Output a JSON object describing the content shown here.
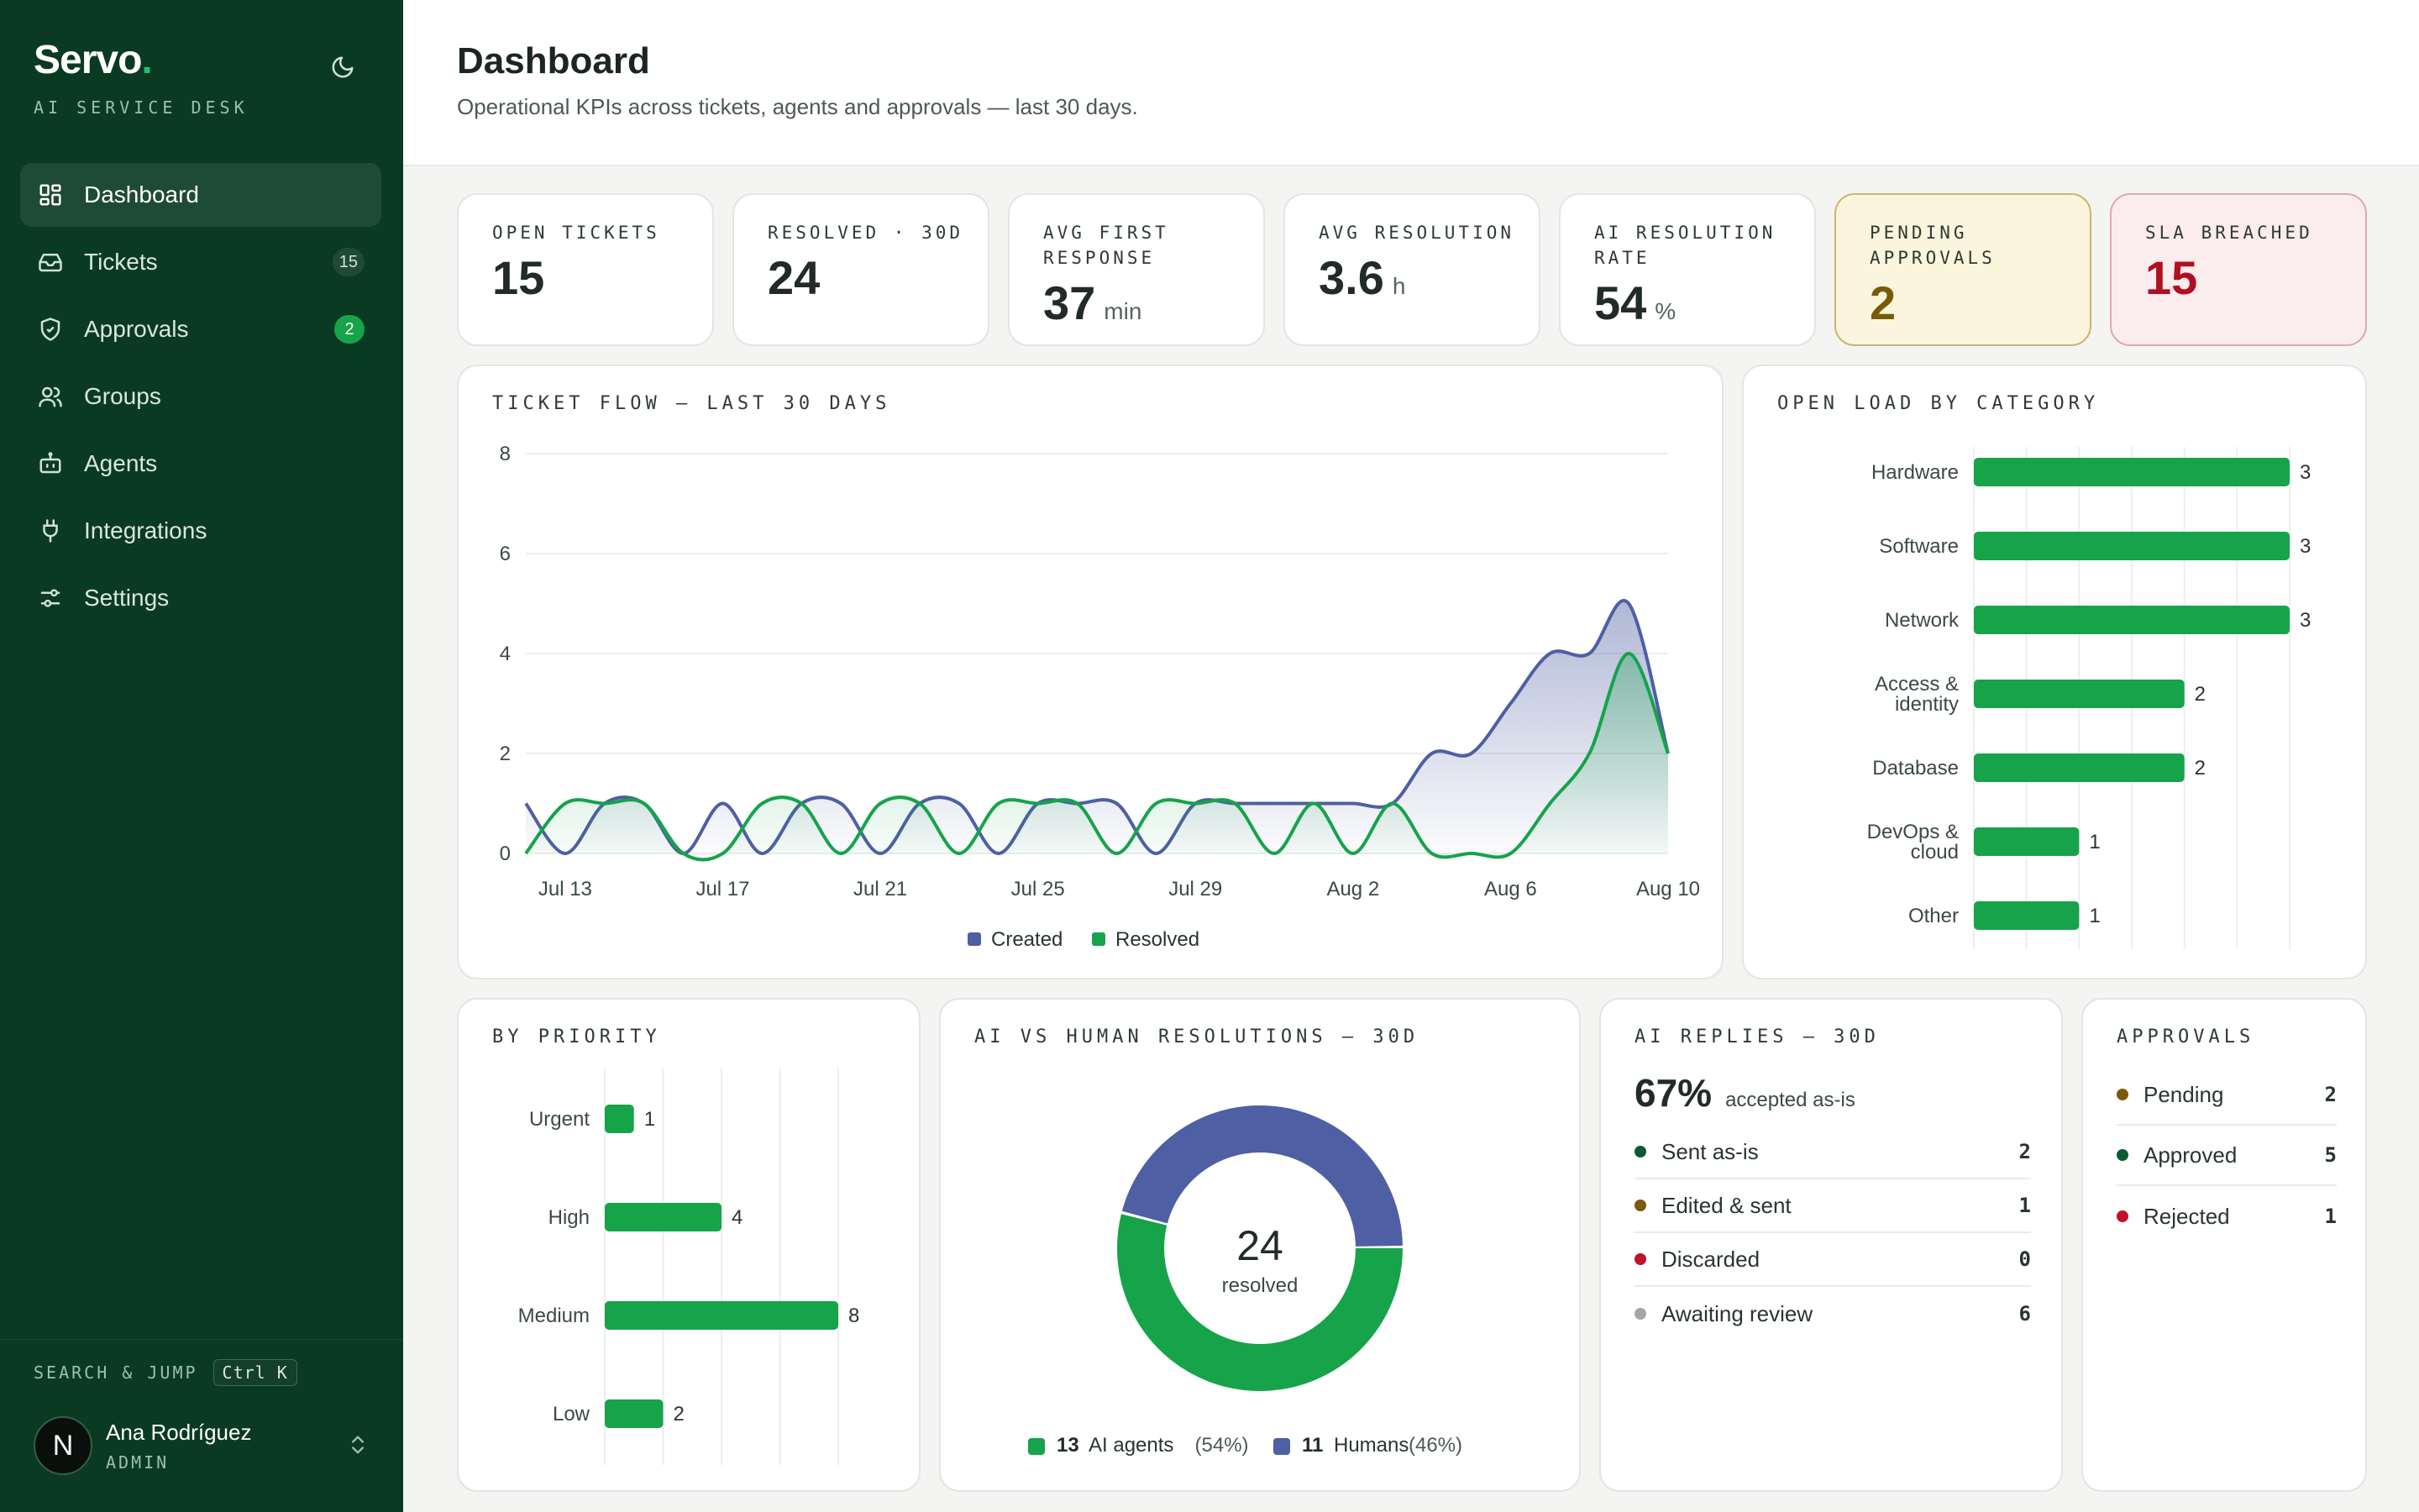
{
  "sidebar": {
    "brand": "Servo",
    "brand_dot": ".",
    "subtitle": "AI SERVICE DESK",
    "items": [
      {
        "label": "Dashboard",
        "icon": "dashboard-icon",
        "active": true
      },
      {
        "label": "Tickets",
        "icon": "inbox-icon",
        "badge": "15"
      },
      {
        "label": "Approvals",
        "icon": "shield-check-icon",
        "badge": "2"
      },
      {
        "label": "Groups",
        "icon": "users-icon"
      },
      {
        "label": "Agents",
        "icon": "bot-icon"
      },
      {
        "label": "Integrations",
        "icon": "plug-icon"
      },
      {
        "label": "Settings",
        "icon": "sliders-icon"
      }
    ],
    "search_label": "SEARCH & JUMP",
    "search_shortcut": "Ctrl K",
    "user": {
      "initial": "N",
      "name": "Ana Rodríguez",
      "role": "ADMIN"
    }
  },
  "header": {
    "title": "Dashboard",
    "subtitle": "Operational KPIs across tickets, agents and approvals — last 30 days."
  },
  "kpis": [
    {
      "label": "OPEN TICKETS",
      "value": "15",
      "unit": ""
    },
    {
      "label": "RESOLVED · 30D",
      "value": "24",
      "unit": ""
    },
    {
      "label": "AVG FIRST RESPONSE",
      "value": "37",
      "unit": "min"
    },
    {
      "label": "AVG RESOLUTION",
      "value": "3.6",
      "unit": "h"
    },
    {
      "label": "AI RESOLUTION RATE",
      "value": "54",
      "unit": "%"
    },
    {
      "label": "PENDING APPROVALS",
      "value": "2",
      "unit": ""
    },
    {
      "label": "SLA BREACHED",
      "value": "15",
      "unit": ""
    }
  ],
  "colors": {
    "green": "#16a34a",
    "blue": "#4e5fa3",
    "brown": "#7a5a06",
    "red": "#c0122a",
    "gray": "#a3a8a5"
  },
  "chart_data": [
    {
      "type": "area",
      "title": "TICKET FLOW — LAST 30 DAYS",
      "x": [
        "Jul 12",
        "Jul 13",
        "Jul 14",
        "Jul 15",
        "Jul 16",
        "Jul 17",
        "Jul 18",
        "Jul 19",
        "Jul 20",
        "Jul 21",
        "Jul 22",
        "Jul 23",
        "Jul 24",
        "Jul 25",
        "Jul 26",
        "Jul 27",
        "Jul 28",
        "Jul 29",
        "Jul 30",
        "Jul 31",
        "Aug 1",
        "Aug 2",
        "Aug 3",
        "Aug 4",
        "Aug 5",
        "Aug 6",
        "Aug 7",
        "Aug 8",
        "Aug 9",
        "Aug 10"
      ],
      "x_ticks": [
        "Jul 13",
        "Jul 17",
        "Jul 21",
        "Jul 25",
        "Jul 29",
        "Aug 2",
        "Aug 6",
        "Aug 10"
      ],
      "ylim": [
        0,
        8
      ],
      "y_ticks": [
        "0",
        "2",
        "4",
        "6",
        "8"
      ],
      "series": [
        {
          "name": "Created",
          "color": "#4e5fa3",
          "values": [
            1,
            0,
            1,
            1,
            0,
            1,
            0,
            1,
            1,
            0,
            1,
            1,
            0,
            1,
            1,
            1,
            0,
            1,
            1,
            1,
            1,
            1,
            1,
            2,
            2,
            3,
            4,
            4,
            5,
            2
          ]
        },
        {
          "name": "Resolved",
          "color": "#16a34a",
          "values": [
            0,
            1,
            1,
            1,
            0,
            0,
            1,
            1,
            0,
            1,
            1,
            0,
            1,
            1,
            1,
            0,
            1,
            1,
            1,
            0,
            1,
            0,
            1,
            0,
            0,
            0,
            1,
            2,
            4,
            2
          ]
        }
      ],
      "legend": "bottom"
    },
    {
      "type": "bar",
      "orientation": "horizontal",
      "title": "OPEN LOAD BY CATEGORY",
      "categories": [
        [
          "Hardware"
        ],
        [
          "Software"
        ],
        [
          "Network"
        ],
        [
          "Access &",
          "identity"
        ],
        [
          "Database"
        ],
        [
          "DevOps &",
          "cloud"
        ],
        [
          "Other"
        ]
      ],
      "values": [
        3,
        3,
        3,
        2,
        2,
        1,
        1
      ],
      "xlim": [
        0,
        3
      ]
    },
    {
      "type": "bar",
      "orientation": "horizontal",
      "title": "BY PRIORITY",
      "categories": [
        [
          "Urgent"
        ],
        [
          "High"
        ],
        [
          "Medium"
        ],
        [
          "Low"
        ]
      ],
      "values": [
        1,
        4,
        8,
        2
      ],
      "xlim": [
        0,
        8
      ]
    },
    {
      "type": "pie",
      "title": "AI VS HUMAN RESOLUTIONS — 30D",
      "center_value": "24",
      "center_label": "resolved",
      "series": [
        {
          "name": "AI agents",
          "value": 13,
          "pct": "(54%)",
          "color": "#16a34a"
        },
        {
          "name": "Humans",
          "value": 11,
          "pct": "(46%)",
          "color": "#4e5fa3"
        }
      ]
    }
  ],
  "ai_replies": {
    "title": "AI REPLIES — 30D",
    "rate": "67%",
    "rate_label": "accepted as-is",
    "rows": [
      {
        "label": "Sent as-is",
        "value": "2",
        "color": "#0f5a30"
      },
      {
        "label": "Edited & sent",
        "value": "1",
        "color": "#7a5a06"
      },
      {
        "label": "Discarded",
        "value": "0",
        "color": "#c0122a"
      },
      {
        "label": "Awaiting review",
        "value": "6",
        "color": "#a3a8a5"
      }
    ]
  },
  "approvals": {
    "title": "APPROVALS",
    "rows": [
      {
        "label": "Pending",
        "value": "2",
        "color": "#7a5a06"
      },
      {
        "label": "Approved",
        "value": "5",
        "color": "#0f5a30"
      },
      {
        "label": "Rejected",
        "value": "1",
        "color": "#c0122a"
      }
    ]
  }
}
